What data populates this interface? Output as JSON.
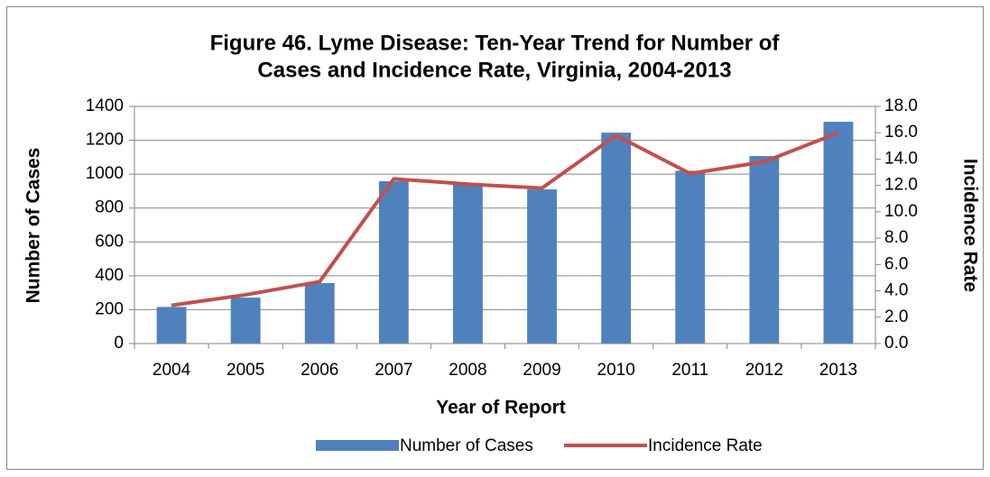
{
  "chart_data": {
    "type": "bar_line",
    "title": "Figure 46. Lyme Disease: Ten-Year Trend for Number of Cases and Incidence Rate, Virginia, 2004-2013",
    "title_lines": [
      "Figure 46. Lyme Disease: Ten-Year Trend for Number of",
      "Cases and Incidence Rate, Virginia, 2004-2013"
    ],
    "x_label": "Year of Report",
    "y_label": "Number of Cases",
    "y2_label": "Incidence Rate",
    "categories": [
      "2004",
      "2005",
      "2006",
      "2007",
      "2008",
      "2009",
      "2010",
      "2011",
      "2012",
      "2013"
    ],
    "series": [
      {
        "name": "Number of Cases",
        "type": "bar",
        "color": "#4f81bd",
        "values": [
          216,
          271,
          357,
          958,
          940,
          910,
          1245,
          1020,
          1107,
          1309
        ]
      },
      {
        "name": "Incidence Rate",
        "type": "line",
        "axis": "y2",
        "color": "#c0504d",
        "values": [
          2.9,
          3.7,
          4.7,
          12.5,
          12.1,
          11.8,
          15.8,
          12.9,
          13.8,
          16.0
        ]
      }
    ],
    "ylim": [
      0,
      1400
    ],
    "yticks": [
      0,
      200,
      400,
      600,
      800,
      1000,
      1200,
      1400
    ],
    "y2lim": [
      0,
      18
    ],
    "y2ticks": [
      {
        "value": 0,
        "label": "0.0"
      },
      {
        "value": 2,
        "label": "2.0"
      },
      {
        "value": 4,
        "label": "4.0"
      },
      {
        "value": 6,
        "label": "6.0"
      },
      {
        "value": 8,
        "label": "8.0"
      },
      {
        "value": 10,
        "label": "10.0"
      },
      {
        "value": 12,
        "label": "12.0"
      },
      {
        "value": 14,
        "label": "14.0"
      },
      {
        "value": 16,
        "label": "16.0"
      },
      {
        "value": 18,
        "label": "18.0"
      }
    ],
    "grid": true,
    "legend": "bottom"
  }
}
